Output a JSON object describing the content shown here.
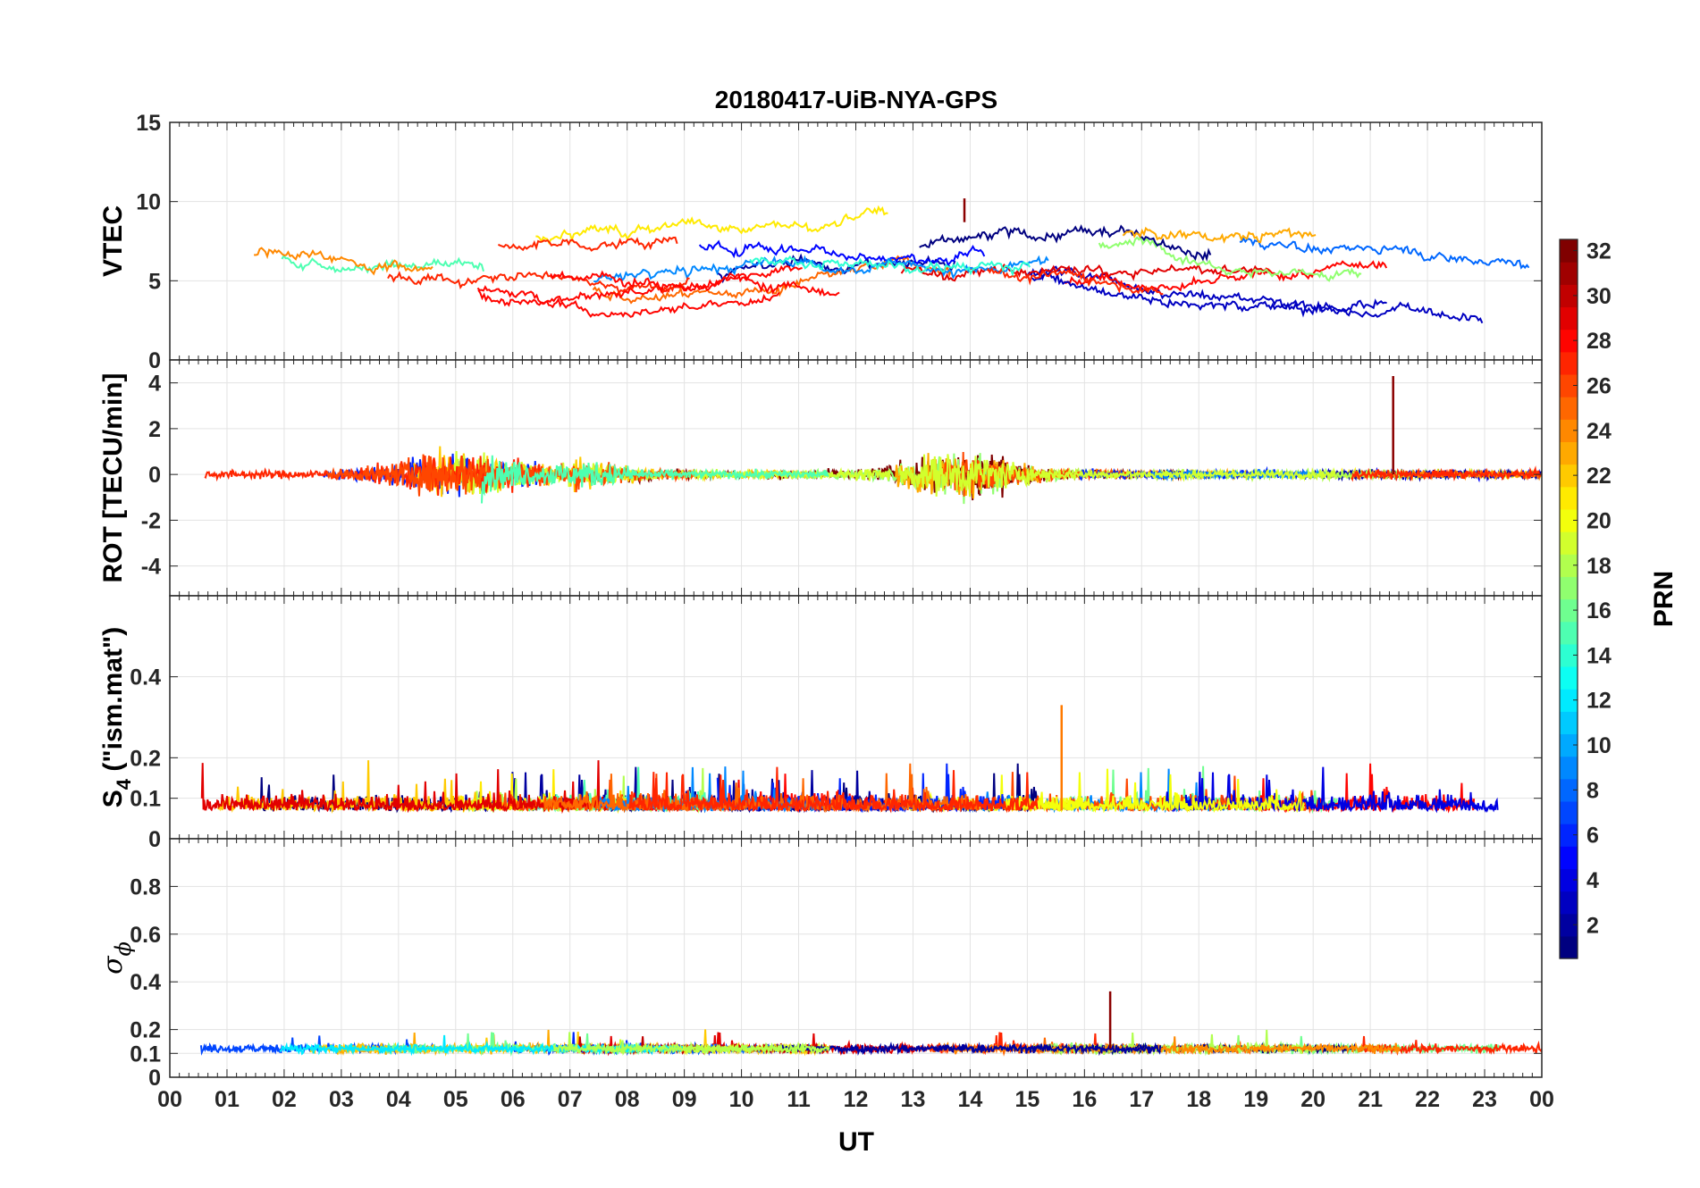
{
  "chart_data": {
    "type": "line",
    "title": "20180417-UiB-NYA-GPS",
    "xlabel": "UT",
    "x_tick_labels": [
      "00",
      "01",
      "02",
      "03",
      "04",
      "05",
      "06",
      "07",
      "08",
      "09",
      "10",
      "11",
      "12",
      "13",
      "14",
      "15",
      "16",
      "17",
      "18",
      "19",
      "20",
      "21",
      "22",
      "23",
      "00"
    ],
    "xlim": [
      0,
      24
    ],
    "colorbar": {
      "label": "PRN",
      "range": [
        1,
        32
      ],
      "ticks": [
        2,
        4,
        6,
        8,
        10,
        12,
        14,
        16,
        18,
        20,
        22,
        24,
        26,
        28,
        30,
        32
      ],
      "tick_labels": [
        "2",
        "4",
        "6",
        "8",
        "10",
        "12",
        "14",
        "16",
        "18",
        "20",
        "22",
        "24",
        "26",
        "28",
        "30",
        "32"
      ],
      "colormap": "jet"
    },
    "panels": [
      {
        "id": "vtec",
        "ylabel": "VTEC",
        "ylim": [
          0,
          15
        ],
        "y_ticks": [
          0,
          5,
          10,
          15
        ],
        "y_tick_labels": [
          "0",
          "5",
          "10",
          "15"
        ],
        "baseline": 5.8,
        "peak_value": 10.2,
        "peak_time_ut": 13.9
      },
      {
        "id": "rot",
        "ylabel": "ROT [TECU/min]",
        "ylim": [
          -5.3,
          5.0
        ],
        "y_ticks": [
          -4,
          -2,
          0,
          2,
          4
        ],
        "y_tick_labels": [
          "-4",
          "-2",
          "0",
          "2",
          "4"
        ],
        "baseline": 0,
        "max_spike": 4.3,
        "max_spike_time_ut": 21.4
      },
      {
        "id": "s4",
        "ylabel_main": "S",
        "ylabel_sub": "4",
        "ylabel_rest": " (\"ism.mat\")",
        "ylim": [
          0,
          0.6
        ],
        "y_ticks": [
          0,
          0.1,
          0.2,
          0.4
        ],
        "y_tick_labels": [
          "0",
          "0.1",
          "0.2",
          "0.4"
        ],
        "baseline": 0.07,
        "max_spike": 0.33,
        "max_spike_time_ut": 15.6
      },
      {
        "id": "sigma",
        "ylabel_main": "σ",
        "ylabel_sub": "ϕ",
        "ylim": [
          0,
          1
        ],
        "y_ticks": [
          0,
          0.1,
          0.2,
          0.4,
          0.6,
          0.8
        ],
        "y_tick_labels": [
          "0",
          "0.1",
          "0.2",
          "0.4",
          "0.6",
          "0.8"
        ],
        "baseline": 0.12,
        "max_spike": 0.36,
        "max_spike_time_ut": 16.45
      }
    ]
  }
}
